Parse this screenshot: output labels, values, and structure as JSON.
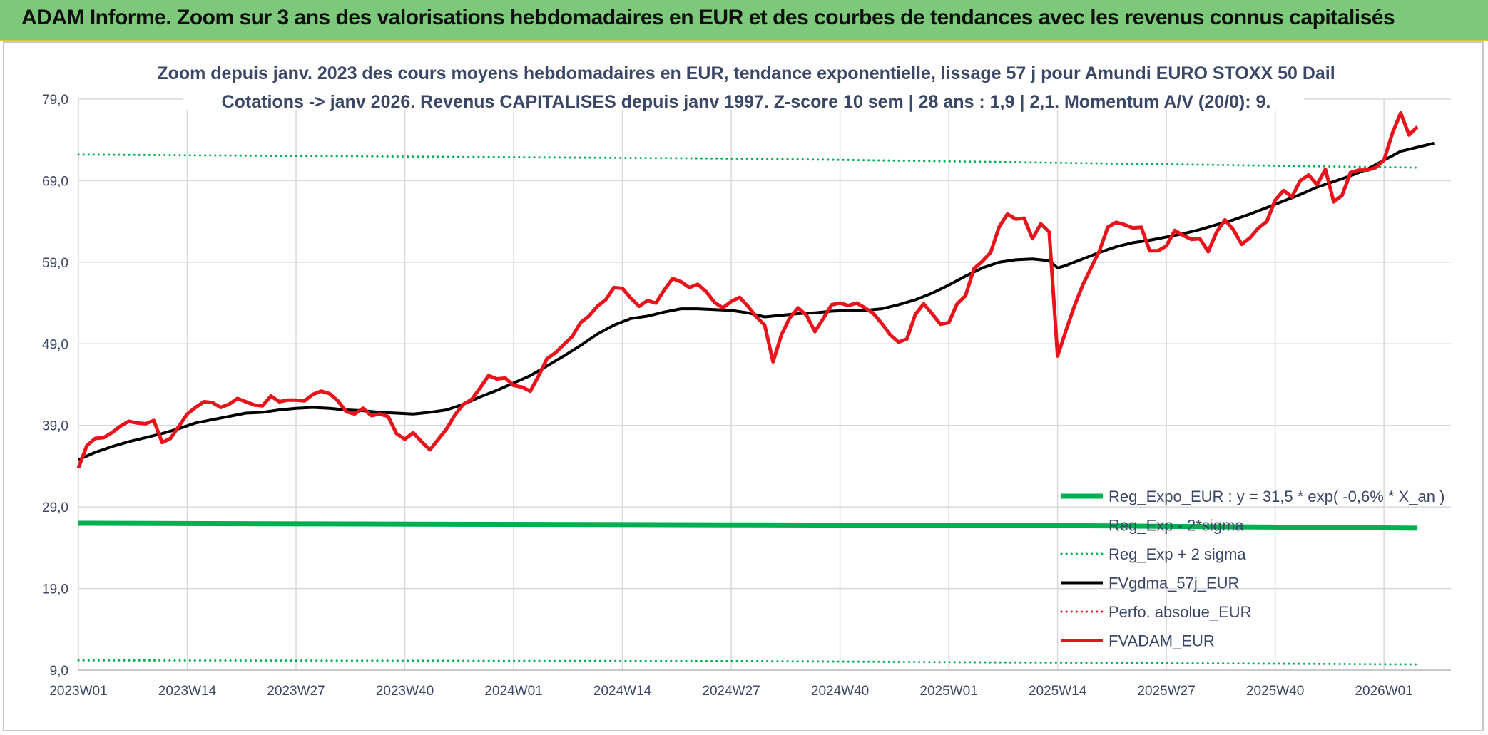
{
  "banner": {
    "title": "ADAM Informe. Zoom sur 3 ans des valorisations hebdomadaires en EUR et des courbes de tendances avec les revenus connus capitalisés"
  },
  "colors": {
    "banner_bg": "#7dc87a",
    "green": "#00b050",
    "black": "#000000",
    "red": "#e8141c",
    "grid": "#d9d9d9",
    "text": "#3a4766"
  },
  "chart_data": {
    "type": "line",
    "title": [
      "Zoom depuis janv. 2023 des cours moyens hebdomadaires en EUR, tendance exponentielle, lissage 57 j pour Amundi EURO STOXX 50 Dail",
      "Cotations -> janv 2026. Revenus CAPITALISES depuis janv 1997. Z-score 10 sem | 28 ans : 1,9 | 2,1. Momentum A/V (20/0): 9."
    ],
    "ylim": [
      9.0,
      79.0
    ],
    "yticks": [
      "79,0",
      "69,0",
      "59,0",
      "49,0",
      "39,0",
      "29,0",
      "19,0",
      "9,0"
    ],
    "xlim": [
      0,
      164
    ],
    "xticks": [
      {
        "label": "2023W01",
        "x": 0
      },
      {
        "label": "2023W14",
        "x": 13
      },
      {
        "label": "2023W27",
        "x": 26
      },
      {
        "label": "2023W40",
        "x": 39
      },
      {
        "label": "2024W01",
        "x": 52
      },
      {
        "label": "2024W14",
        "x": 65
      },
      {
        "label": "2024W27",
        "x": 78
      },
      {
        "label": "2024W40",
        "x": 91
      },
      {
        "label": "2025W01",
        "x": 104
      },
      {
        "label": "2025W14",
        "x": 117
      },
      {
        "label": "2025W27",
        "x": 130
      },
      {
        "label": "2025W40",
        "x": 143
      },
      {
        "label": "2026W01",
        "x": 156
      }
    ],
    "legend": [
      {
        "label": "Reg_Expo_EUR : y = 31,5 * exp( -0,6% *  X_an )",
        "style": "solid",
        "color": "#00b050",
        "width": 7
      },
      {
        "label": "Reg_Exp - 2*sigma",
        "style": "dotted",
        "color": "#00b050",
        "width": 3
      },
      {
        "label": "Reg_Exp + 2 sigma",
        "style": "dotted",
        "color": "#00b050",
        "width": 3
      },
      {
        "label": "FVgdma_57j_EUR",
        "style": "solid",
        "color": "#000000",
        "width": 4
      },
      {
        "label": "Perfo. absolue_EUR",
        "style": "dotted",
        "color": "#e8141c",
        "width": 3
      },
      {
        "label": "FVADAM_EUR",
        "style": "solid",
        "color": "#e8141c",
        "width": 5
      }
    ],
    "series": [
      {
        "name": "Reg_Expo_EUR",
        "style": "solid",
        "color": "#00b050",
        "width": 7,
        "points": [
          [
            0,
            27.0
          ],
          [
            40,
            26.9
          ],
          [
            80,
            26.8
          ],
          [
            120,
            26.7
          ],
          [
            160,
            26.4
          ]
        ]
      },
      {
        "name": "Reg_Exp - 2*sigma",
        "style": "dotted",
        "color": "#00b050",
        "width": 3,
        "points": [
          [
            0,
            10.2
          ],
          [
            80,
            10.1
          ],
          [
            160,
            9.7
          ]
        ]
      },
      {
        "name": "Reg_Exp + 2 sigma",
        "style": "dotted",
        "color": "#00b050",
        "width": 3,
        "points": [
          [
            0,
            72.2
          ],
          [
            80,
            71.7
          ],
          [
            160,
            70.6
          ]
        ]
      },
      {
        "name": "FVgdma_57j_EUR",
        "style": "solid",
        "color": "#000000",
        "width": 4,
        "points": [
          [
            0,
            34.8
          ],
          [
            2,
            35.7
          ],
          [
            4,
            36.4
          ],
          [
            6,
            37.0
          ],
          [
            8,
            37.5
          ],
          [
            10,
            38.0
          ],
          [
            12,
            38.6
          ],
          [
            14,
            39.3
          ],
          [
            16,
            39.7
          ],
          [
            18,
            40.1
          ],
          [
            20,
            40.5
          ],
          [
            22,
            40.6
          ],
          [
            24,
            40.9
          ],
          [
            26,
            41.1
          ],
          [
            28,
            41.2
          ],
          [
            30,
            41.1
          ],
          [
            32,
            40.9
          ],
          [
            34,
            40.8
          ],
          [
            36,
            40.6
          ],
          [
            38,
            40.5
          ],
          [
            40,
            40.4
          ],
          [
            42,
            40.6
          ],
          [
            44,
            40.9
          ],
          [
            46,
            41.6
          ],
          [
            48,
            42.5
          ],
          [
            50,
            43.3
          ],
          [
            52,
            44.2
          ],
          [
            54,
            45.1
          ],
          [
            56,
            46.3
          ],
          [
            58,
            47.5
          ],
          [
            60,
            48.8
          ],
          [
            62,
            50.2
          ],
          [
            64,
            51.3
          ],
          [
            66,
            52.1
          ],
          [
            68,
            52.4
          ],
          [
            70,
            52.9
          ],
          [
            72,
            53.3
          ],
          [
            74,
            53.3
          ],
          [
            76,
            53.2
          ],
          [
            78,
            53.1
          ],
          [
            80,
            52.8
          ],
          [
            82,
            52.3
          ],
          [
            84,
            52.5
          ],
          [
            86,
            52.7
          ],
          [
            88,
            52.8
          ],
          [
            90,
            53.0
          ],
          [
            92,
            53.1
          ],
          [
            94,
            53.1
          ],
          [
            96,
            53.3
          ],
          [
            98,
            53.8
          ],
          [
            100,
            54.4
          ],
          [
            102,
            55.2
          ],
          [
            104,
            56.2
          ],
          [
            106,
            57.3
          ],
          [
            108,
            58.3
          ],
          [
            110,
            59.0
          ],
          [
            112,
            59.3
          ],
          [
            114,
            59.4
          ],
          [
            116,
            59.2
          ],
          [
            117,
            58.3
          ],
          [
            118,
            58.6
          ],
          [
            120,
            59.4
          ],
          [
            122,
            60.2
          ],
          [
            124,
            60.9
          ],
          [
            126,
            61.4
          ],
          [
            128,
            61.7
          ],
          [
            130,
            62.1
          ],
          [
            132,
            62.5
          ],
          [
            134,
            63.0
          ],
          [
            136,
            63.6
          ],
          [
            138,
            64.2
          ],
          [
            140,
            64.9
          ],
          [
            142,
            65.7
          ],
          [
            144,
            66.5
          ],
          [
            146,
            67.3
          ],
          [
            148,
            68.2
          ],
          [
            150,
            68.9
          ],
          [
            152,
            69.6
          ],
          [
            154,
            70.4
          ],
          [
            156,
            71.5
          ],
          [
            158,
            72.6
          ],
          [
            160,
            73.1
          ],
          [
            162,
            73.6
          ]
        ]
      },
      {
        "name": "FVADAM_EUR",
        "style": "solid",
        "color": "#e8141c",
        "width": 5,
        "points": [
          [
            0,
            33.8
          ],
          [
            1,
            36.5
          ],
          [
            2,
            37.4
          ],
          [
            3,
            37.5
          ],
          [
            4,
            38.1
          ],
          [
            5,
            38.9
          ],
          [
            6,
            39.5
          ],
          [
            7,
            39.3
          ],
          [
            8,
            39.2
          ],
          [
            9,
            39.6
          ],
          [
            10,
            36.9
          ],
          [
            11,
            37.4
          ],
          [
            12,
            38.9
          ],
          [
            13,
            40.4
          ],
          [
            14,
            41.2
          ],
          [
            15,
            41.9
          ],
          [
            16,
            41.8
          ],
          [
            17,
            41.2
          ],
          [
            18,
            41.6
          ],
          [
            19,
            42.3
          ],
          [
            20,
            41.9
          ],
          [
            21,
            41.5
          ],
          [
            22,
            41.4
          ],
          [
            23,
            42.6
          ],
          [
            24,
            41.9
          ],
          [
            25,
            42.1
          ],
          [
            26,
            42.1
          ],
          [
            27,
            42.0
          ],
          [
            28,
            42.8
          ],
          [
            29,
            43.2
          ],
          [
            30,
            42.9
          ],
          [
            31,
            42.0
          ],
          [
            32,
            40.7
          ],
          [
            33,
            40.4
          ],
          [
            34,
            41.1
          ],
          [
            35,
            40.2
          ],
          [
            36,
            40.4
          ],
          [
            37,
            40.1
          ],
          [
            38,
            38.0
          ],
          [
            39,
            37.3
          ],
          [
            40,
            38.1
          ],
          [
            41,
            37.0
          ],
          [
            42,
            36.0
          ],
          [
            43,
            37.3
          ],
          [
            44,
            38.6
          ],
          [
            45,
            40.3
          ],
          [
            46,
            41.6
          ],
          [
            47,
            42.2
          ],
          [
            48,
            43.6
          ],
          [
            49,
            45.1
          ],
          [
            50,
            44.7
          ],
          [
            51,
            44.8
          ],
          [
            52,
            43.9
          ],
          [
            53,
            43.7
          ],
          [
            54,
            43.2
          ],
          [
            55,
            45.1
          ],
          [
            56,
            47.2
          ],
          [
            57,
            47.9
          ],
          [
            58,
            48.9
          ],
          [
            59,
            49.9
          ],
          [
            60,
            51.6
          ],
          [
            61,
            52.4
          ],
          [
            62,
            53.6
          ],
          [
            63,
            54.4
          ],
          [
            64,
            55.9
          ],
          [
            65,
            55.8
          ],
          [
            66,
            54.6
          ],
          [
            67,
            53.6
          ],
          [
            68,
            54.3
          ],
          [
            69,
            54.0
          ],
          [
            70,
            55.6
          ],
          [
            71,
            57.0
          ],
          [
            72,
            56.6
          ],
          [
            73,
            55.9
          ],
          [
            74,
            56.3
          ],
          [
            75,
            55.4
          ],
          [
            76,
            54.1
          ],
          [
            77,
            53.4
          ],
          [
            78,
            54.2
          ],
          [
            79,
            54.7
          ],
          [
            80,
            53.6
          ],
          [
            81,
            52.3
          ],
          [
            82,
            51.3
          ],
          [
            83,
            46.8
          ],
          [
            84,
            50.1
          ],
          [
            85,
            52.2
          ],
          [
            86,
            53.4
          ],
          [
            87,
            52.5
          ],
          [
            88,
            50.5
          ],
          [
            89,
            52.1
          ],
          [
            90,
            53.8
          ],
          [
            91,
            54.0
          ],
          [
            92,
            53.7
          ],
          [
            93,
            54.0
          ],
          [
            94,
            53.4
          ],
          [
            95,
            52.7
          ],
          [
            96,
            51.5
          ],
          [
            97,
            50.1
          ],
          [
            98,
            49.2
          ],
          [
            99,
            49.6
          ],
          [
            100,
            52.6
          ],
          [
            101,
            53.9
          ],
          [
            102,
            52.7
          ],
          [
            103,
            51.4
          ],
          [
            104,
            51.6
          ],
          [
            105,
            53.9
          ],
          [
            106,
            54.9
          ],
          [
            107,
            58.2
          ],
          [
            108,
            59.1
          ],
          [
            109,
            60.2
          ],
          [
            110,
            63.3
          ],
          [
            111,
            64.9
          ],
          [
            112,
            64.3
          ],
          [
            113,
            64.4
          ],
          [
            114,
            61.9
          ],
          [
            115,
            63.7
          ],
          [
            116,
            62.7
          ],
          [
            117,
            47.5
          ],
          [
            118,
            50.6
          ],
          [
            119,
            53.6
          ],
          [
            120,
            56.2
          ],
          [
            121,
            58.3
          ],
          [
            122,
            60.4
          ],
          [
            123,
            63.3
          ],
          [
            124,
            63.9
          ],
          [
            125,
            63.6
          ],
          [
            126,
            63.2
          ],
          [
            127,
            63.3
          ],
          [
            128,
            60.4
          ],
          [
            129,
            60.4
          ],
          [
            130,
            61.0
          ],
          [
            131,
            62.9
          ],
          [
            132,
            62.3
          ],
          [
            133,
            61.8
          ],
          [
            134,
            61.9
          ],
          [
            135,
            60.3
          ],
          [
            136,
            62.7
          ],
          [
            137,
            64.2
          ],
          [
            138,
            63.0
          ],
          [
            139,
            61.2
          ],
          [
            140,
            62.0
          ],
          [
            141,
            63.2
          ],
          [
            142,
            64.0
          ],
          [
            143,
            66.6
          ],
          [
            144,
            67.8
          ],
          [
            145,
            67.0
          ],
          [
            146,
            69.0
          ],
          [
            147,
            69.7
          ],
          [
            148,
            68.5
          ],
          [
            149,
            70.4
          ],
          [
            150,
            66.4
          ],
          [
            151,
            67.2
          ],
          [
            152,
            70.0
          ],
          [
            153,
            70.3
          ],
          [
            154,
            70.3
          ],
          [
            155,
            70.6
          ],
          [
            156,
            71.5
          ],
          [
            157,
            74.8
          ],
          [
            158,
            77.3
          ],
          [
            159,
            74.6
          ],
          [
            160,
            75.6
          ]
        ]
      }
    ]
  }
}
